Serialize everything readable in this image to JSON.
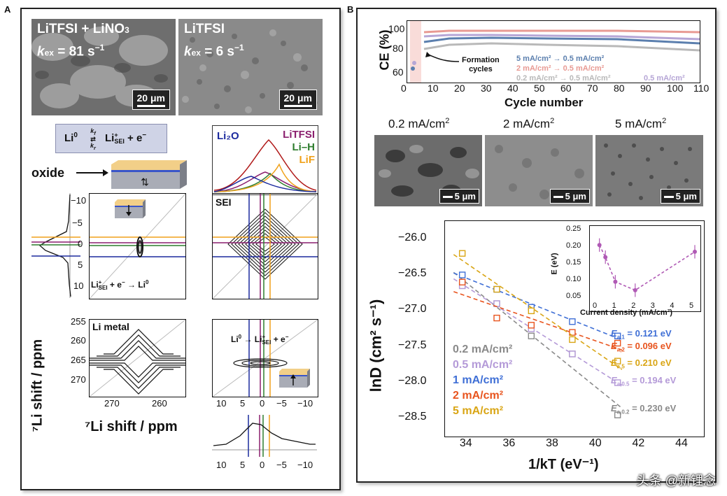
{
  "panel_labels": {
    "a": "A",
    "b": "B"
  },
  "panelA": {
    "sem1": {
      "title": "LiTFSI + LiNO",
      "sub": "3",
      "k_prefix": "k",
      "k_sub": "ex",
      "k_value": " = 81 s",
      "k_exp": "−1",
      "scale": "20 μm"
    },
    "sem2": {
      "title": "LiTFSI",
      "k_prefix": "k",
      "k_sub": "ex",
      "k_value": " = 6 s",
      "k_exp": "−1",
      "scale": "20 μm"
    },
    "equation": {
      "left": "Li",
      "left_sup": "0",
      "kf": "k",
      "kf_sub": "f",
      "kr": "k",
      "kr_sub": "r",
      "right": "Li",
      "right_sup": "+",
      "right_sub": "SEI",
      "tail": " + e"
    },
    "oxide_label": "oxide",
    "legend": {
      "li2o": "Li₂O",
      "litfsi": "LiTFSI",
      "lih": "Li–H",
      "lif": "LiF"
    },
    "sei_label": "SEI",
    "li_metal_label": "Li metal",
    "reaction1": {
      "a": "Li",
      "a_sup": "+",
      "a_sub": "SEI",
      "b": " + e",
      "c": "Li",
      "c_sup": "0"
    },
    "reaction2": {
      "a": "Li",
      "a_sup": "0",
      "c": "Li",
      "c_sup": "+",
      "c_sub": "SEI",
      "d": " + e"
    },
    "yaxis_label": "⁷Li shift / ppm",
    "xaxis_label": "⁷Li shift / ppm",
    "ticks_top_y": [
      "−10",
      "−5",
      "0",
      "5",
      "10"
    ],
    "ticks_bot_y": [
      "255",
      "260",
      "265",
      "270"
    ],
    "ticks_bot_x": [
      "270",
      "260"
    ],
    "ticks_right_x": [
      "10",
      "5",
      "0",
      "−5",
      "−10"
    ],
    "colors": {
      "blue": "#1b2a9e",
      "green": "#2e7d2e",
      "orange": "#f0a11a",
      "purple": "#8a1f6e",
      "red": "#b01818"
    }
  },
  "panelB": {
    "ce_chart": {
      "ylabel": "CE (%)",
      "xlabel": "Cycle number",
      "formation_label": "Formation\ncycles",
      "yticks": [
        "60",
        "80",
        "100"
      ],
      "xticks": [
        "0",
        "10",
        "20",
        "30",
        "40",
        "50",
        "60",
        "70",
        "80",
        "90",
        "100",
        "110"
      ],
      "legend": [
        {
          "text": "5 mA/cm² → 0.5 mA/cm²",
          "color": "#5b7fae"
        },
        {
          "text": "2 mA/cm² → 0.5 mA/cm²",
          "color": "#e89a93"
        },
        {
          "text": "0.2 mA/cm² → 0.5 mA/cm²",
          "color": "#b9b9b9"
        },
        {
          "text": "0.5 mA/cm²",
          "color": "#b6a6d6"
        }
      ]
    },
    "sem_labels": [
      "0.2 mA/cm",
      "2 mA/cm",
      "5 mA/cm"
    ],
    "sem_scale": "5 μm",
    "arrhenius": {
      "ylabel": "lnD (cm² s⁻¹)",
      "xlabel": "1/kT (eV⁻¹)",
      "yticks": [
        "−26.0",
        "−26.5",
        "−27.0",
        "−27.5",
        "−28.0",
        "−28.5"
      ],
      "xticks": [
        "34",
        "36",
        "38",
        "40",
        "42",
        "44"
      ],
      "legend": [
        {
          "text": "0.2 mA/cm²",
          "color": "#8a8a8a"
        },
        {
          "text": "0.5 mA/cm²",
          "color": "#b49ad8"
        },
        {
          "text": "1 mA/cm²",
          "color": "#3f6fd6"
        },
        {
          "text": "2 mA/cm²",
          "color": "#e8541e"
        },
        {
          "text": "5 mA/cm²",
          "color": "#d9a514"
        }
      ],
      "ea_labels": [
        {
          "sub": "a,1",
          "val": " = 0.121 eV",
          "color": "#3f6fd6"
        },
        {
          "sub": "a,2",
          "val": " = 0.096 eV",
          "color": "#e8541e"
        },
        {
          "sub": "a,5",
          "val": " = 0.210 eV",
          "color": "#d9a514"
        },
        {
          "sub": "a,0.5",
          "val": " = 0.194 eV",
          "color": "#b49ad8"
        },
        {
          "sub": "a,0.2",
          "val": " = 0.230 eV",
          "color": "#8a8a8a"
        }
      ],
      "inset": {
        "ylabel": "E (eV)",
        "xlabel": "Current density (mA/cm²)",
        "yticks": [
          "0.25",
          "0.20",
          "0.15",
          "0.10",
          "0.05"
        ],
        "xticks": [
          "0",
          "1",
          "2",
          "3",
          "4",
          "5"
        ]
      }
    }
  },
  "watermark": "头条 @新锂念",
  "chart_data": [
    {
      "type": "scatter",
      "ylabel": "lnD (cm² s⁻¹)",
      "xlabel": "1/kT (eV⁻¹)",
      "xlim": [
        33,
        45
      ],
      "ylim": [
        -28.75,
        -25.75
      ],
      "series": [
        {
          "name": "0.2 mA/cm²",
          "x": [
            33.8,
            35.4,
            37.0,
            38.9,
            41.0
          ],
          "y": [
            -26.65,
            -26.9,
            -27.35,
            -27.6,
            -28.45
          ],
          "color": "#8a8a8a"
        },
        {
          "name": "0.5 mA/cm²",
          "x": [
            33.8,
            35.4,
            37.0,
            38.9,
            41.0
          ],
          "y": [
            -26.65,
            -26.9,
            -27.25,
            -27.6,
            -28.0
          ],
          "color": "#b49ad8"
        },
        {
          "name": "1 mA/cm²",
          "x": [
            33.8,
            35.4,
            37.0,
            38.9,
            41.0
          ],
          "y": [
            -26.5,
            -26.7,
            -26.95,
            -27.15,
            -27.35
          ],
          "color": "#3f6fd6"
        },
        {
          "name": "2 mA/cm²",
          "x": [
            33.8,
            35.4,
            37.0,
            38.9,
            41.0
          ],
          "y": [
            -26.6,
            -27.1,
            -27.2,
            -27.3,
            -27.45
          ],
          "color": "#e8541e"
        },
        {
          "name": "5 mA/cm²",
          "x": [
            33.8,
            35.4,
            37.0,
            38.9,
            41.0
          ],
          "y": [
            -26.2,
            -26.7,
            -27.0,
            -27.4,
            -27.7
          ],
          "color": "#d9a514"
        }
      ]
    },
    {
      "type": "line",
      "xlabel": "Current density (mA/cm²)",
      "ylabel": "E (eV)",
      "xlim": [
        0,
        5
      ],
      "ylim": [
        0.05,
        0.27
      ],
      "x": [
        0.2,
        0.5,
        1,
        2,
        5
      ],
      "values": [
        0.23,
        0.194,
        0.121,
        0.096,
        0.21
      ],
      "color": "#b05ab5"
    },
    {
      "type": "line",
      "xlabel": "Cycle number",
      "ylabel": "CE (%)",
      "xlim": [
        0,
        110
      ],
      "ylim": [
        55,
        105
      ],
      "series": [
        {
          "name": "5 mA/cm² → 0.5 mA/cm²",
          "approx_value": 90,
          "color": "#5b7fae"
        },
        {
          "name": "2 mA/cm² → 0.5 mA/cm²",
          "approx_value": 96,
          "color": "#e89a93"
        },
        {
          "name": "0.2 mA/cm² → 0.5 mA/cm²",
          "approx_value": 86,
          "color": "#b9b9b9"
        },
        {
          "name": "0.5 mA/cm²",
          "approx_value": 94,
          "color": "#b6a6d6"
        }
      ]
    }
  ]
}
